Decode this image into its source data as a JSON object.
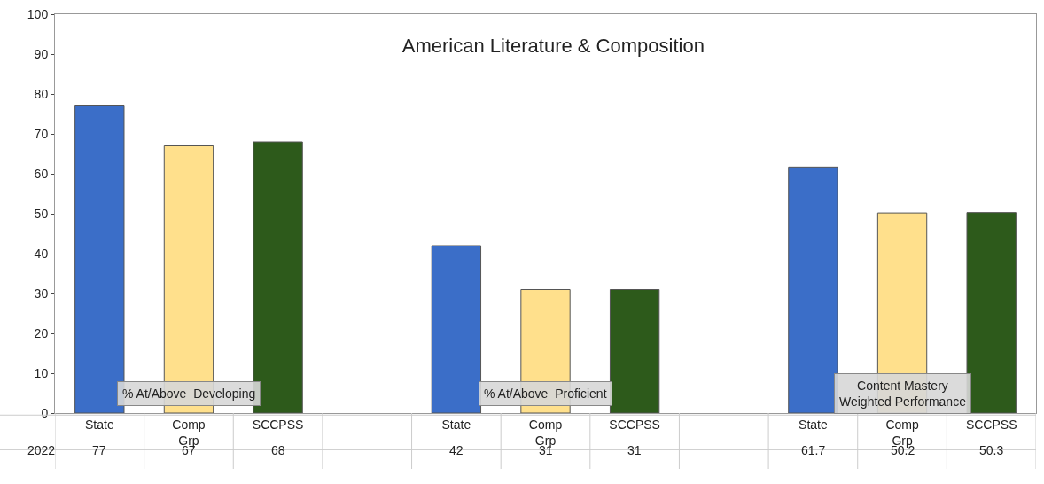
{
  "chart_data": {
    "type": "bar",
    "title": "American Literature & Composition",
    "categories": [
      "State",
      "Comp Grp",
      "SCCPSS",
      null,
      "State",
      "Comp Grp",
      "SCCPSS",
      null,
      "State",
      "Comp Grp",
      "SCCPSS"
    ],
    "series": [
      {
        "name": "2022",
        "values": [
          77,
          67,
          68,
          null,
          42,
          31,
          31,
          null,
          61.7,
          50.2,
          50.3
        ]
      }
    ],
    "colors": [
      "#3b6ec8",
      "#ffe08c",
      "#2d5a1b",
      null,
      "#3b6ec8",
      "#ffe08c",
      "#2d5a1b",
      null,
      "#3b6ec8",
      "#ffe08c",
      "#2d5a1b"
    ],
    "data_labels": true,
    "annotations": [
      "% At/Above  Developing",
      "% At/Above  Proficient",
      "Content Mastery\nWeighted Performance"
    ],
    "ylim": [
      0,
      100
    ],
    "yticks": [
      0,
      10,
      20,
      30,
      40,
      50,
      60,
      70,
      80,
      90,
      100
    ],
    "legend": false
  }
}
